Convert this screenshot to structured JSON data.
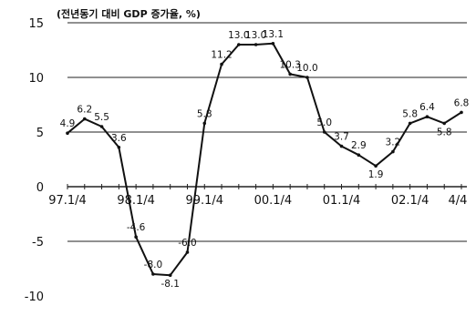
{
  "chart_data": {
    "type": "line",
    "title": "(전년동기 대비 GDP 증가율, %)",
    "xlabel": "",
    "ylabel": "",
    "ylim": [
      -10,
      15
    ],
    "y_ticks": [
      "15",
      "10",
      "5",
      "0",
      "-5",
      "-10"
    ],
    "y_tick_values": [
      15,
      10,
      5,
      0,
      -5,
      -10
    ],
    "grid": "horizontal",
    "x_ticks": [
      {
        "label": "97.1/4",
        "index": 0
      },
      {
        "label": "98.1/4",
        "index": 4
      },
      {
        "label": "99.1/4",
        "index": 8
      },
      {
        "label": "00.1/4",
        "index": 12
      },
      {
        "label": "01.1/4",
        "index": 16
      },
      {
        "label": "02.1/4",
        "index": 20
      },
      {
        "label": "4/4",
        "index": 23
      }
    ],
    "series": [
      {
        "color": "#111111",
        "values": [
          4.9,
          6.2,
          5.5,
          3.6,
          -4.6,
          -8.0,
          -8.1,
          -6.0,
          5.8,
          11.2,
          13.0,
          13.0,
          13.1,
          10.3,
          10.0,
          5.0,
          3.7,
          2.9,
          1.9,
          3.2,
          5.8,
          6.4,
          5.8,
          6.8
        ],
        "labels": [
          "4.9",
          "6.2",
          "5.5",
          "3.6",
          "-4.6",
          "-8.0",
          "-8.1",
          "-6.0",
          "5.8",
          "11.2",
          "13.0",
          "13.0",
          "13.1",
          "10.3",
          "10.0",
          "5.0",
          "3.7",
          "2.9",
          "1.9",
          "3.2",
          "5.8",
          "6.4",
          "5.8",
          "6.8"
        ]
      }
    ]
  }
}
